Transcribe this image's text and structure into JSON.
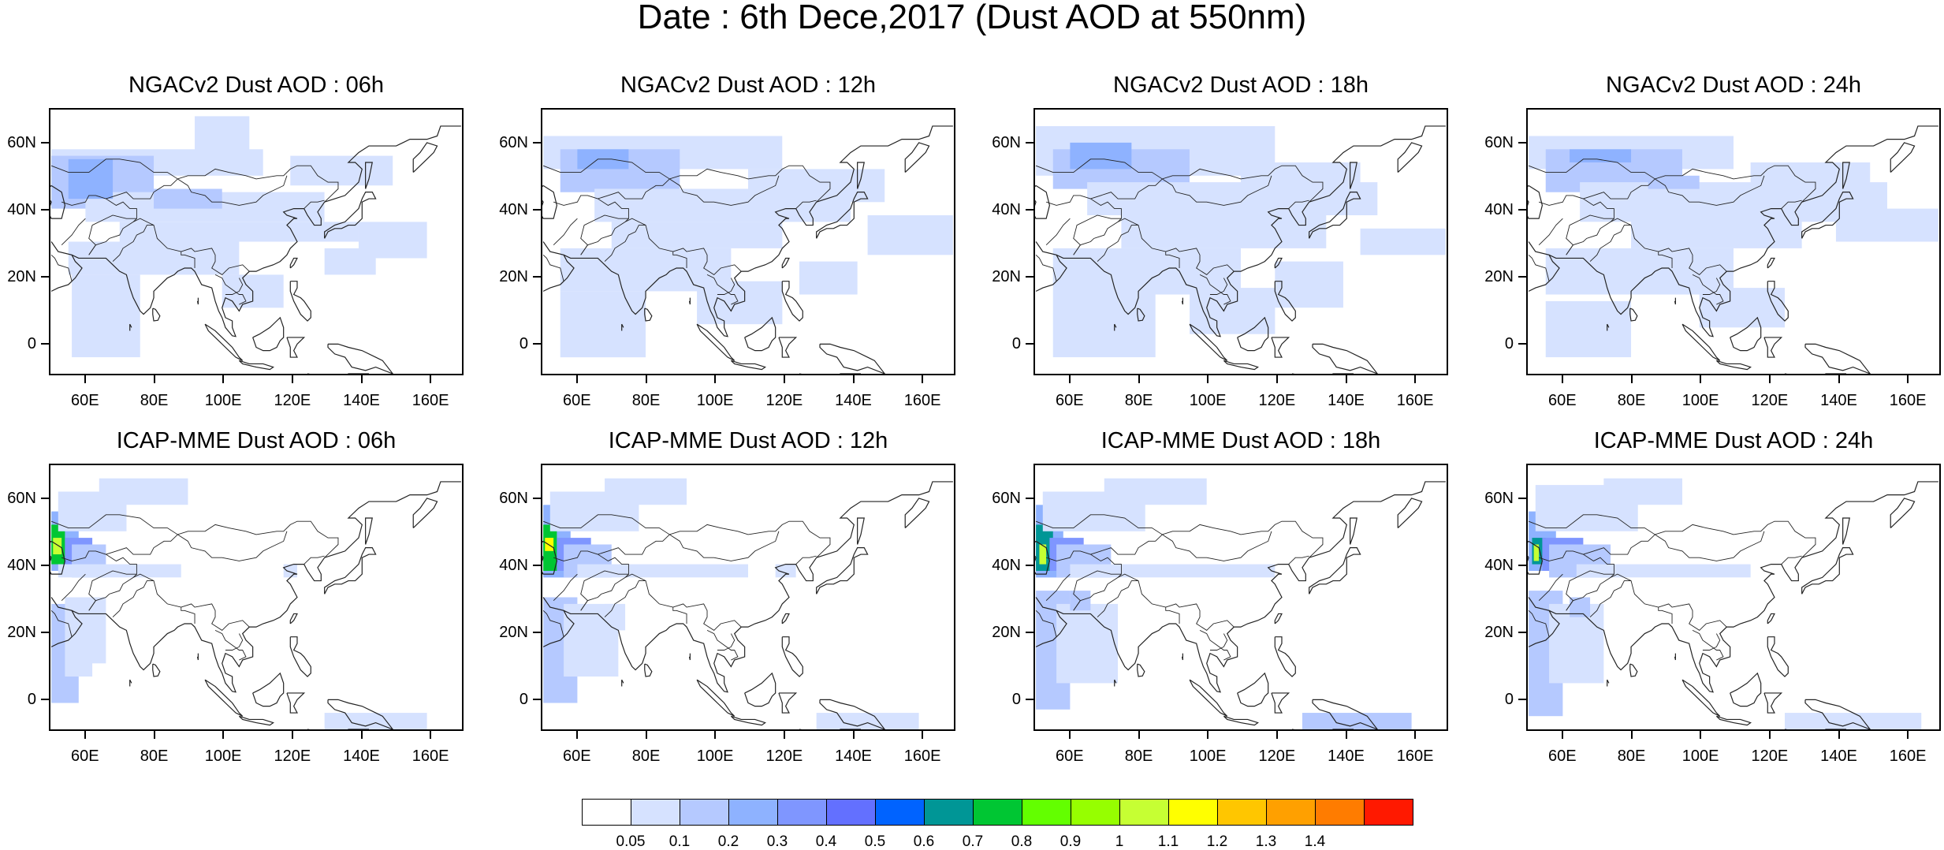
{
  "title": "Date : 6th Dece,2017 (Dust AOD at 550nm)",
  "axes": {
    "lat_ticks": [
      {
        "value": 60,
        "label": "60N"
      },
      {
        "value": 40,
        "label": "40N"
      },
      {
        "value": 20,
        "label": "20N"
      },
      {
        "value": 0,
        "label": "0"
      }
    ],
    "lon_ticks": [
      {
        "value": 60,
        "label": "60E"
      },
      {
        "value": 80,
        "label": "80E"
      },
      {
        "value": 100,
        "label": "100E"
      },
      {
        "value": 120,
        "label": "120E"
      },
      {
        "value": 140,
        "label": "140E"
      },
      {
        "value": 160,
        "label": "160E"
      }
    ],
    "lon_range": [
      50,
      170
    ],
    "lat_range": [
      -10,
      70
    ]
  },
  "panels": [
    {
      "title": "NGACv2 Dust AOD : 06h",
      "model": "NGACv2",
      "hour": "06h"
    },
    {
      "title": "NGACv2 Dust AOD : 12h",
      "model": "NGACv2",
      "hour": "12h"
    },
    {
      "title": "NGACv2 Dust AOD : 18h",
      "model": "NGACv2",
      "hour": "18h"
    },
    {
      "title": "NGACv2 Dust AOD : 24h",
      "model": "NGACv2",
      "hour": "24h"
    },
    {
      "title": "ICAP-MME Dust AOD : 06h",
      "model": "ICAP-MME",
      "hour": "06h"
    },
    {
      "title": "ICAP-MME Dust AOD : 12h",
      "model": "ICAP-MME",
      "hour": "12h"
    },
    {
      "title": "ICAP-MME Dust AOD : 18h",
      "model": "ICAP-MME",
      "hour": "18h"
    },
    {
      "title": "ICAP-MME Dust AOD : 24h",
      "model": "ICAP-MME",
      "hour": "24h"
    }
  ],
  "colorbar": {
    "colors": [
      "#ffffff",
      "#d6e2ff",
      "#b5c9ff",
      "#8eb2ff",
      "#7f96ff",
      "#6370ff",
      "#0063ff",
      "#009696",
      "#00c633",
      "#63ff00",
      "#96ff00",
      "#c6ff33",
      "#ffff00",
      "#ffc600",
      "#ffa000",
      "#ff7c00",
      "#ff1900"
    ],
    "labels": [
      "0.05",
      "0.1",
      "0.2",
      "0.3",
      "0.4",
      "0.5",
      "0.6",
      "0.7",
      "0.8",
      "0.9",
      "1",
      "1.1",
      "1.2",
      "1.3",
      "1.4"
    ]
  }
}
